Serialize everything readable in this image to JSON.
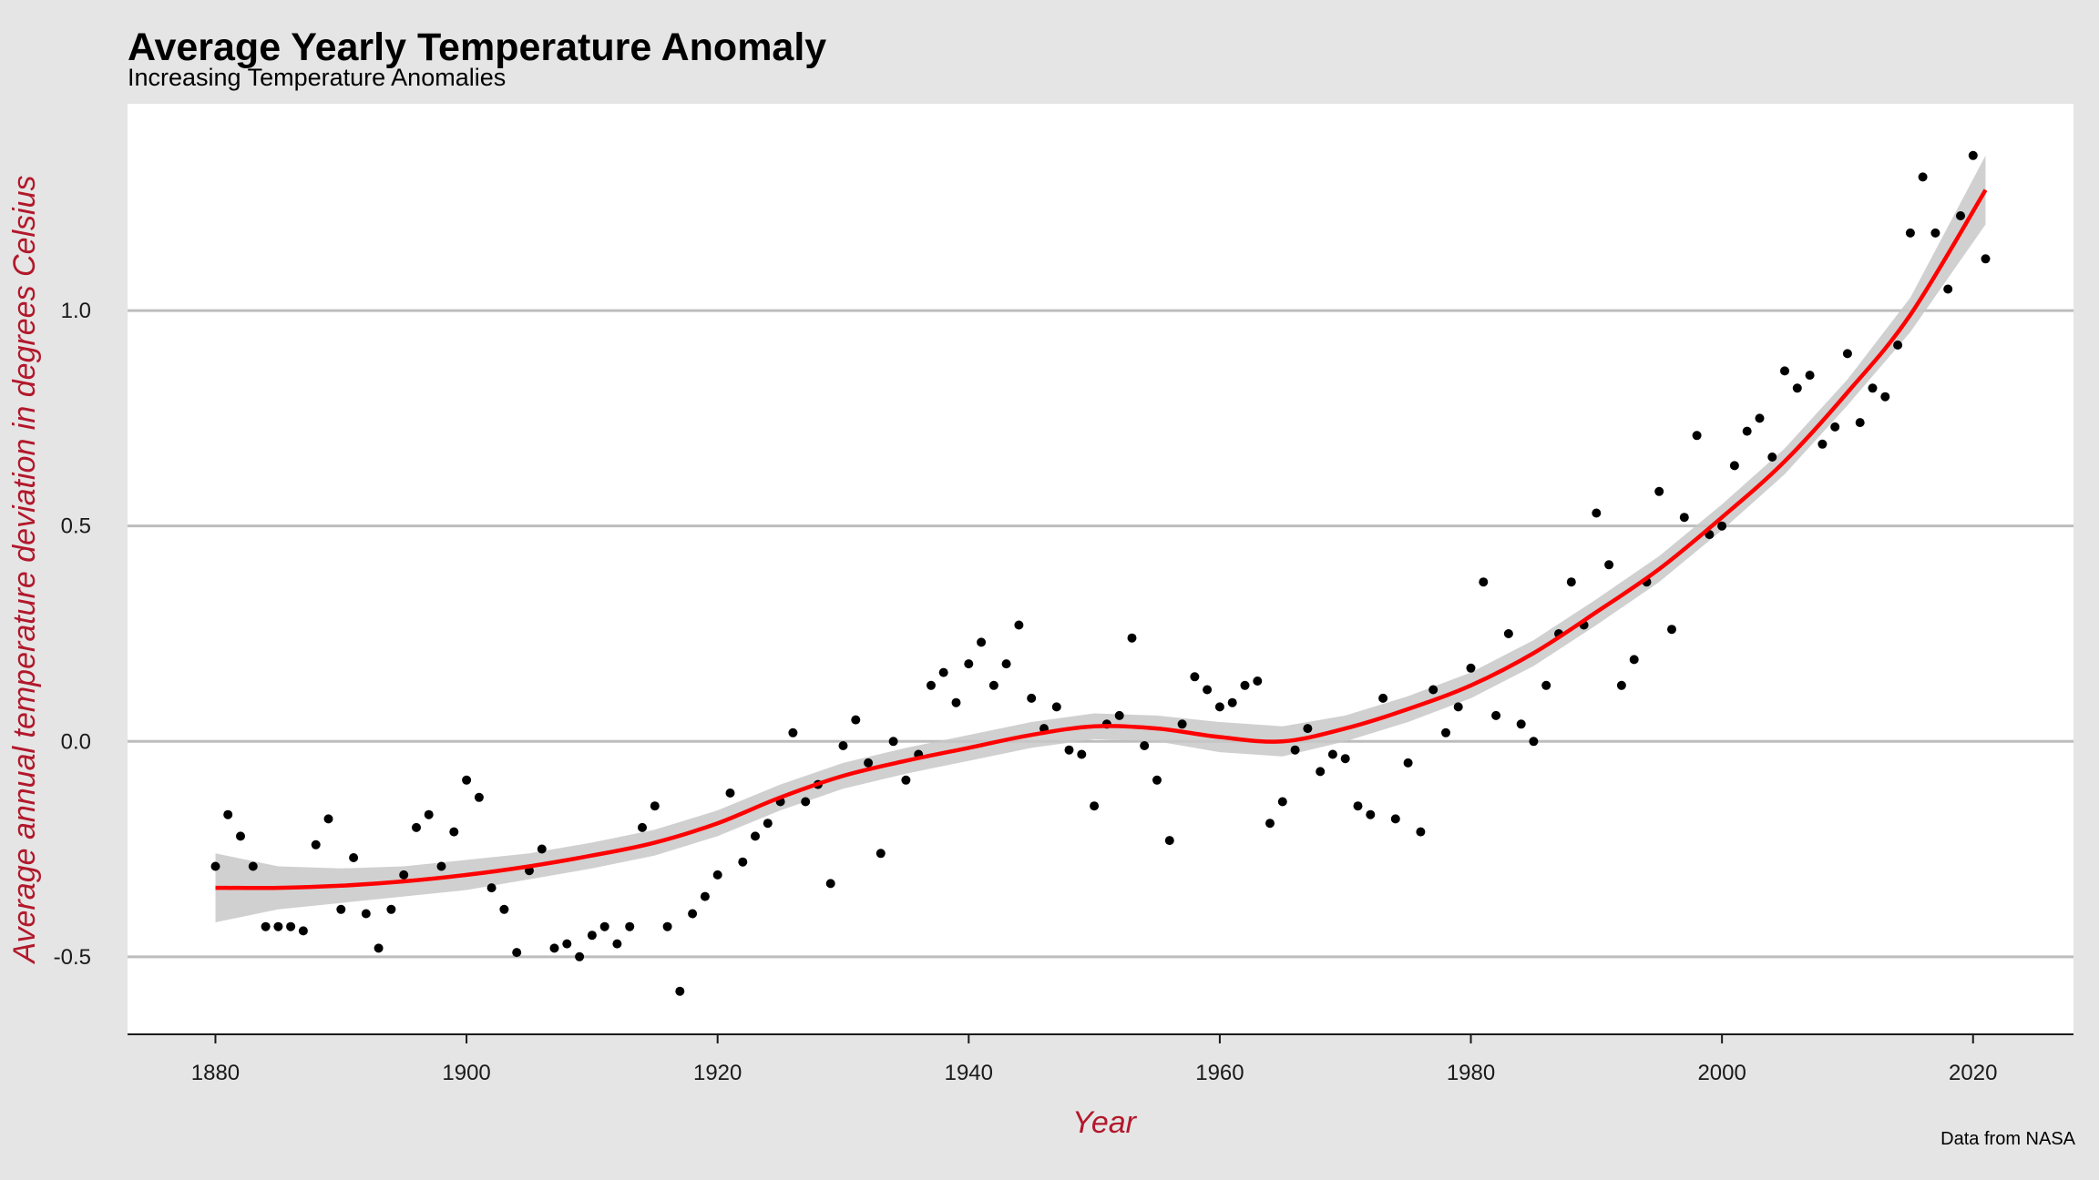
{
  "chart_data": {
    "type": "scatter",
    "title": "Average Yearly Temperature Anomaly",
    "subtitle": "Increasing Temperature Anomalies",
    "xlabel": "Year",
    "ylabel": "Average annual temperature deviation in degrees Celsius",
    "caption": "Data from NASA",
    "xlim": [
      1873,
      2028
    ],
    "ylim": [
      -0.68,
      1.48
    ],
    "x_ticks": [
      1880,
      1900,
      1920,
      1940,
      1960,
      1980,
      2000,
      2020
    ],
    "x_tick_labels": [
      "1880",
      "1900",
      "1920",
      "1940",
      "1960",
      "1980",
      "2000",
      "2020"
    ],
    "y_ticks": [
      -0.5,
      0,
      0.5,
      1
    ],
    "y_tick_labels": [
      "-0.5",
      "0.0",
      "0.5",
      "1.0"
    ],
    "grid": "horizontal major",
    "colors": {
      "points": "#000000",
      "smooth_line": "#ff0000",
      "confidence_band": "#c8c8c8",
      "panel_background": "#ffffff",
      "plot_background": "#e5e5e5",
      "axis_title": "#b2182b",
      "gridlines": "#bdbdbd"
    },
    "series": [
      {
        "type": "scatter",
        "x": [
          1880,
          1881,
          1882,
          1883,
          1884,
          1885,
          1886,
          1887,
          1888,
          1889,
          1890,
          1891,
          1892,
          1893,
          1894,
          1895,
          1896,
          1897,
          1898,
          1899,
          1900,
          1901,
          1902,
          1903,
          1904,
          1905,
          1906,
          1907,
          1908,
          1909,
          1910,
          1911,
          1912,
          1913,
          1914,
          1915,
          1916,
          1917,
          1918,
          1919,
          1920,
          1921,
          1922,
          1923,
          1924,
          1925,
          1926,
          1927,
          1928,
          1929,
          1930,
          1931,
          1932,
          1933,
          1934,
          1935,
          1936,
          1937,
          1938,
          1939,
          1940,
          1941,
          1942,
          1943,
          1944,
          1945,
          1946,
          1947,
          1948,
          1949,
          1950,
          1951,
          1952,
          1953,
          1954,
          1955,
          1956,
          1957,
          1958,
          1959,
          1960,
          1961,
          1962,
          1963,
          1964,
          1965,
          1966,
          1967,
          1968,
          1969,
          1970,
          1971,
          1972,
          1973,
          1974,
          1975,
          1976,
          1977,
          1978,
          1979,
          1980,
          1981,
          1982,
          1983,
          1984,
          1985,
          1986,
          1987,
          1988,
          1989,
          1990,
          1991,
          1992,
          1993,
          1994,
          1995,
          1996,
          1997,
          1998,
          1999,
          2000,
          2001,
          2002,
          2003,
          2004,
          2005,
          2006,
          2007,
          2008,
          2009,
          2010,
          2011,
          2012,
          2013,
          2014,
          2015,
          2016,
          2017,
          2018,
          2019,
          2020,
          2021
        ],
        "y": [
          -0.29,
          -0.17,
          -0.22,
          -0.29,
          -0.43,
          -0.43,
          -0.43,
          -0.44,
          -0.24,
          -0.18,
          -0.39,
          -0.27,
          -0.4,
          -0.48,
          -0.39,
          -0.31,
          -0.2,
          -0.17,
          -0.29,
          -0.21,
          -0.09,
          -0.13,
          -0.34,
          -0.39,
          -0.49,
          -0.3,
          -0.25,
          -0.48,
          -0.47,
          -0.5,
          -0.45,
          -0.43,
          -0.47,
          -0.43,
          -0.2,
          -0.15,
          -0.43,
          -0.58,
          -0.4,
          -0.36,
          -0.31,
          -0.12,
          -0.28,
          -0.22,
          -0.19,
          -0.14,
          0.02,
          -0.14,
          -0.1,
          -0.33,
          -0.01,
          0.05,
          -0.05,
          -0.26,
          0.0,
          -0.09,
          -0.03,
          0.13,
          0.16,
          0.09,
          0.18,
          0.23,
          0.13,
          0.18,
          0.27,
          0.1,
          0.03,
          0.08,
          -0.02,
          -0.03,
          -0.15,
          0.04,
          0.06,
          0.24,
          -0.01,
          -0.09,
          -0.23,
          0.04,
          0.15,
          0.12,
          0.08,
          0.09,
          0.13,
          0.14,
          -0.19,
          -0.14,
          -0.02,
          0.03,
          -0.07,
          -0.03,
          -0.04,
          -0.15,
          -0.17,
          0.1,
          -0.18,
          -0.05,
          -0.21,
          0.12,
          0.02,
          0.08,
          0.17,
          0.37,
          0.06,
          0.25,
          0.04,
          0.0,
          0.13,
          0.25,
          0.37,
          0.27,
          0.53,
          0.41,
          0.13,
          0.19,
          0.37,
          0.58,
          0.26,
          0.52,
          0.71,
          0.48,
          0.5,
          0.64,
          0.72,
          0.75,
          0.66,
          0.86,
          0.82,
          0.85,
          0.69,
          0.73,
          0.9,
          0.74,
          0.82,
          0.8,
          0.92,
          1.18,
          1.31,
          1.18,
          1.05,
          1.22,
          1.36,
          1.12
        ]
      },
      {
        "type": "smooth",
        "x": [
          1880,
          1885,
          1890,
          1895,
          1900,
          1905,
          1910,
          1915,
          1920,
          1925,
          1930,
          1935,
          1940,
          1945,
          1950,
          1955,
          1960,
          1965,
          1970,
          1975,
          1980,
          1985,
          1990,
          1995,
          2000,
          2005,
          2010,
          2015,
          2021
        ],
        "y": [
          -0.34,
          -0.34,
          -0.335,
          -0.325,
          -0.31,
          -0.29,
          -0.265,
          -0.235,
          -0.19,
          -0.13,
          -0.08,
          -0.045,
          -0.015,
          0.015,
          0.035,
          0.03,
          0.01,
          0.0,
          0.03,
          0.075,
          0.13,
          0.205,
          0.3,
          0.4,
          0.52,
          0.65,
          0.81,
          0.99,
          1.28
        ],
        "band_lower": [
          -0.42,
          -0.39,
          -0.375,
          -0.36,
          -0.345,
          -0.32,
          -0.295,
          -0.265,
          -0.22,
          -0.16,
          -0.11,
          -0.075,
          -0.045,
          -0.015,
          0.005,
          0.0,
          -0.025,
          -0.035,
          0.0,
          0.045,
          0.1,
          0.175,
          0.27,
          0.37,
          0.49,
          0.62,
          0.78,
          0.95,
          1.2
        ],
        "band_upper": [
          -0.26,
          -0.29,
          -0.295,
          -0.29,
          -0.275,
          -0.26,
          -0.235,
          -0.205,
          -0.16,
          -0.1,
          -0.05,
          -0.015,
          0.015,
          0.045,
          0.065,
          0.06,
          0.045,
          0.035,
          0.06,
          0.105,
          0.16,
          0.235,
          0.33,
          0.43,
          0.55,
          0.68,
          0.84,
          1.03,
          1.36
        ]
      }
    ]
  }
}
